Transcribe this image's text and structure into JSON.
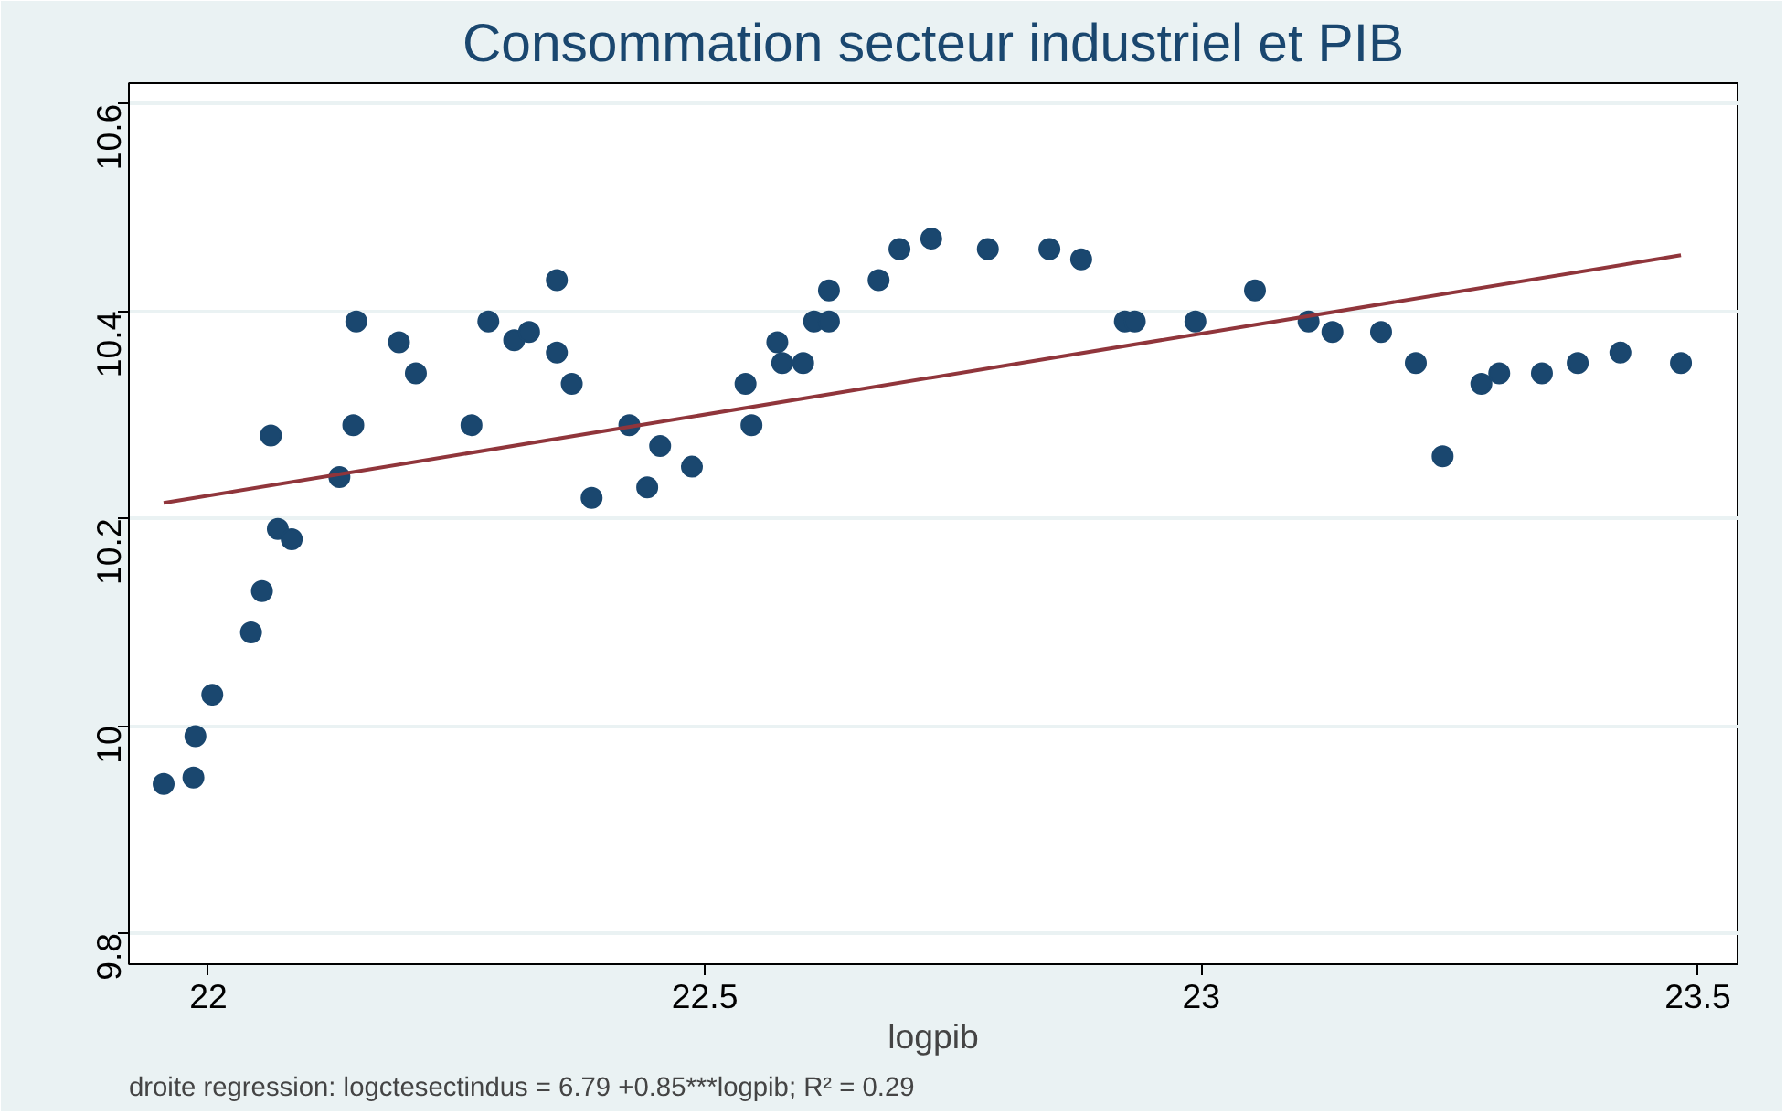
{
  "chart_data": {
    "type": "scatter",
    "title": "Consommation secteur industriel et PIB",
    "xlabel": "logpib",
    "annotations": [
      "droite regression: logctesectindus = 6.79 +0.85***logpib;  R² = 0.29"
    ],
    "xlim": [
      21.92,
      23.54
    ],
    "ylim": [
      9.77,
      10.62
    ],
    "xticks": [
      22,
      22.5,
      23,
      23.5
    ],
    "yticks": [
      9.8,
      10,
      10.2,
      10.4,
      10.6
    ],
    "grid": "y",
    "series": [
      {
        "marker": "circle",
        "color": "#1a476f",
        "x": [
          21.955,
          21.985,
          21.987,
          22.004,
          22.043,
          22.054,
          22.063,
          22.07,
          22.084,
          22.132,
          22.146,
          22.149,
          22.192,
          22.209,
          22.265,
          22.282,
          22.308,
          22.323,
          22.351,
          22.351,
          22.366,
          22.386,
          22.424,
          22.442,
          22.455,
          22.487,
          22.541,
          22.547,
          22.573,
          22.578,
          22.599,
          22.61,
          22.625,
          22.625,
          22.675,
          22.696,
          22.728,
          22.785,
          22.847,
          22.879,
          22.923,
          22.933,
          22.994,
          23.054,
          23.108,
          23.132,
          23.181,
          23.216,
          23.243,
          23.282,
          23.3,
          23.343,
          23.379,
          23.422,
          23.483
        ],
        "values": [
          9.944,
          9.95,
          9.99,
          10.03,
          10.09,
          10.13,
          10.28,
          10.19,
          10.18,
          10.24,
          10.29,
          10.39,
          10.37,
          10.34,
          10.29,
          10.39,
          10.372,
          10.38,
          10.43,
          10.36,
          10.33,
          10.22,
          10.29,
          10.23,
          10.27,
          10.25,
          10.33,
          10.29,
          10.37,
          10.35,
          10.35,
          10.39,
          10.39,
          10.42,
          10.43,
          10.46,
          10.47,
          10.46,
          10.46,
          10.45,
          10.39,
          10.39,
          10.39,
          10.42,
          10.39,
          10.38,
          10.38,
          10.35,
          10.26,
          10.33,
          10.34,
          10.34,
          10.35,
          10.36,
          10.35
        ]
      },
      {
        "type": "line",
        "marker": "none",
        "color": "#90353b",
        "x": [
          21.955,
          23.483
        ],
        "values": [
          10.215,
          10.454
        ]
      }
    ]
  }
}
